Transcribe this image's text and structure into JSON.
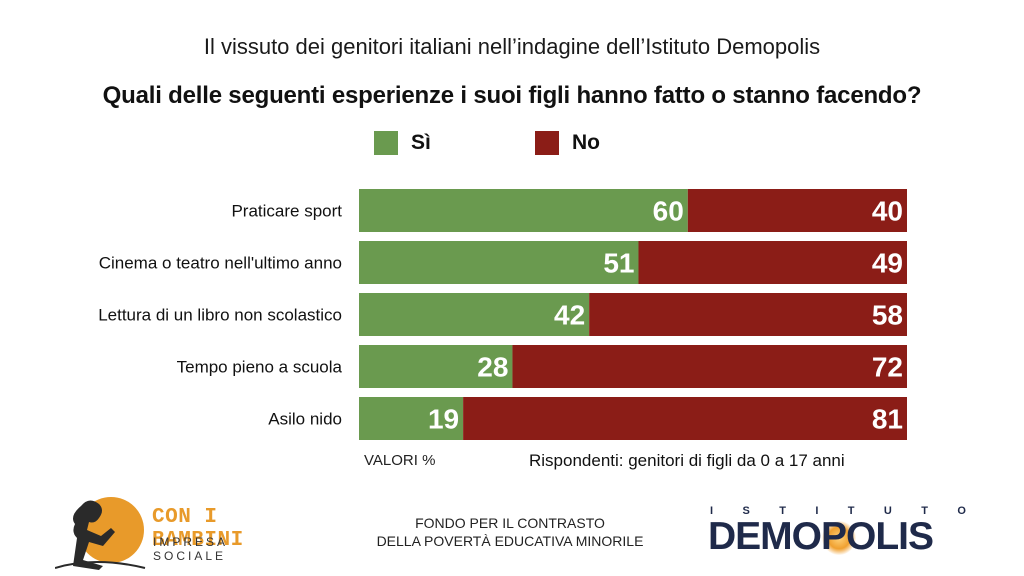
{
  "header": {
    "subtitle": "Il vissuto dei genitori italiani nell’indagine dell’Istituto Demopolis",
    "title": "Quali delle seguenti esperienze i suoi figli hanno fatto o stanno facendo?"
  },
  "legend": {
    "yes_label": "Sì",
    "no_label": "No",
    "yes_color": "#6a9a4f",
    "no_color": "#8b1d17"
  },
  "chart_data": {
    "type": "bar",
    "orientation": "horizontal-stacked-100",
    "categories": [
      "Praticare sport",
      "Cinema o teatro nell'ultimo anno",
      "Lettura di un libro non scolastico",
      "Tempo pieno a scuola",
      "Asilo nido"
    ],
    "series": [
      {
        "name": "Sì",
        "color": "#6a9a4f",
        "values": [
          60,
          51,
          42,
          28,
          19
        ]
      },
      {
        "name": "No",
        "color": "#8b1d17",
        "values": [
          40,
          49,
          58,
          72,
          81
        ]
      }
    ],
    "xlim": [
      0,
      100
    ],
    "legend_position": "top",
    "grid": false
  },
  "notes": {
    "units": "VALORI %",
    "respondents": "Rispondenti: genitori di figli da 0 a 17 anni"
  },
  "footer": {
    "left_logo_main": "CON I BAMBINI",
    "left_logo_sub": "IMPRESA SOCIALE",
    "center_line1": "FONDO PER IL CONTRASTO",
    "center_line2": "DELLA POVERTÀ EDUCATIVA MINORILE",
    "right_logo_top": [
      "I",
      "S",
      "T",
      "I",
      "T",
      "U",
      "T",
      "O"
    ],
    "right_logo_main": "DEMOPOLIS"
  }
}
